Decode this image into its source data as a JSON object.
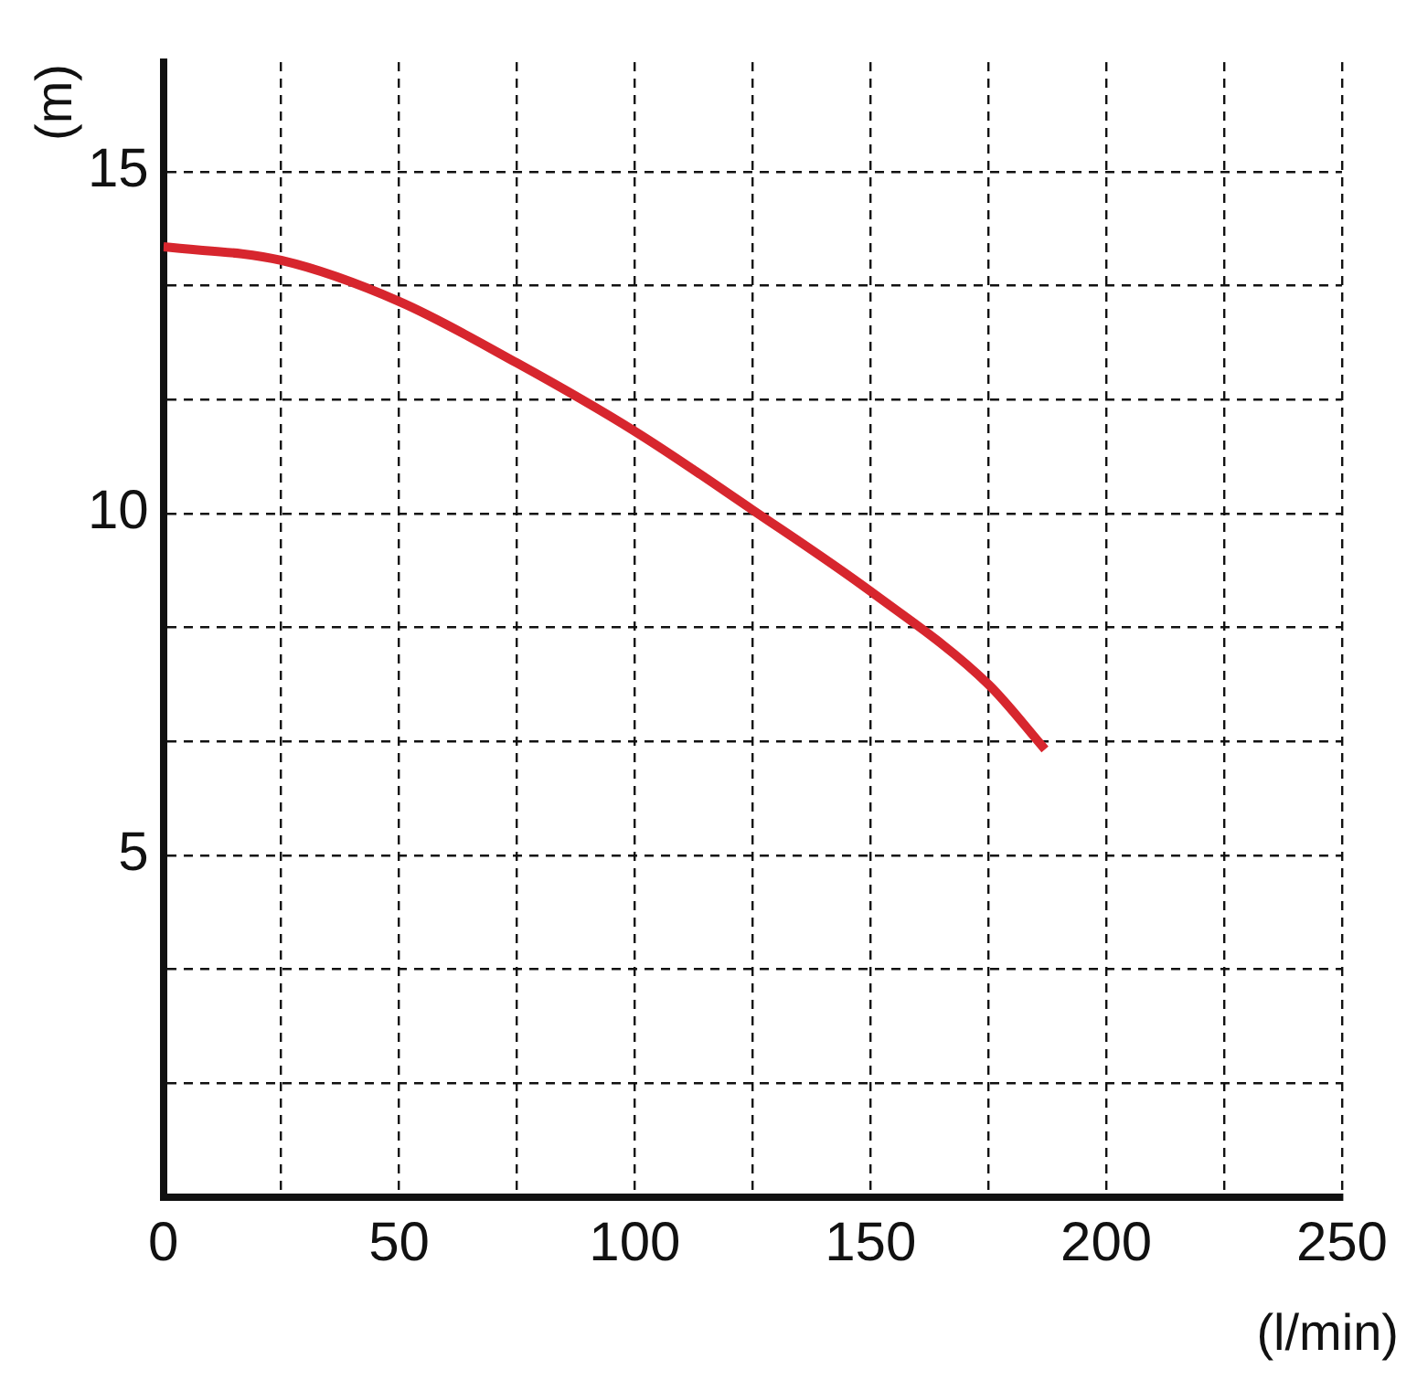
{
  "chart_data": {
    "type": "line",
    "xlabel": "(l/min)",
    "ylabel": "(m)",
    "x": [
      0,
      25,
      50,
      75,
      100,
      125,
      150,
      175,
      187
    ],
    "series": [
      {
        "color": "#d7262e",
        "values": [
          13.9,
          13.7,
          13.1,
          12.2,
          11.2,
          10.05,
          8.86,
          7.5,
          6.55
        ]
      }
    ],
    "xlim": [
      0,
      250
    ],
    "xticks": [
      0,
      {
        "value": 25,
        "label": null
      },
      50,
      {
        "value": 75,
        "label": null
      },
      100,
      {
        "value": 125,
        "label": null
      },
      150,
      {
        "value": 175,
        "label": null
      },
      200,
      {
        "value": 225,
        "label": null
      },
      250
    ],
    "ylim": [
      0,
      16.6
    ],
    "yticks": [
      {
        "value": 1.667,
        "label": null
      },
      {
        "value": 3.333,
        "label": null
      },
      5,
      {
        "value": 6.667,
        "label": null
      },
      {
        "value": 8.333,
        "label": null
      },
      10,
      {
        "value": 11.667,
        "label": null
      },
      {
        "value": 13.333,
        "label": null
      },
      15
    ],
    "grid": true,
    "legend": false,
    "marker": "none",
    "line_style": "solid"
  }
}
